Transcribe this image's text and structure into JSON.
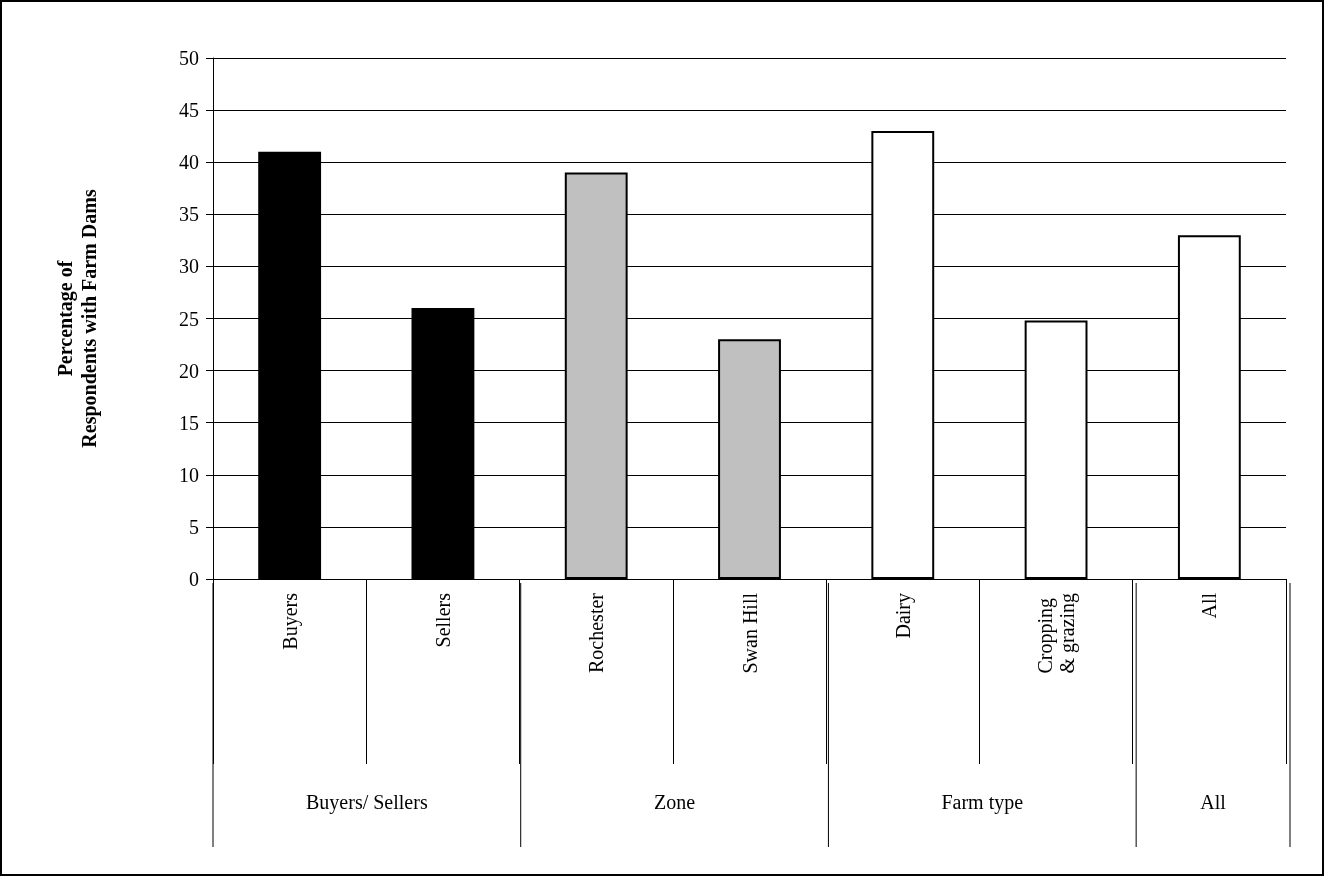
{
  "chart_data": {
    "type": "bar",
    "ylabel": "Percentage of Respondents with Farm Dams",
    "categories": [
      "Buyers",
      "Sellers",
      "Rochester",
      "Swan Hill",
      "Dairy",
      "Cropping & grazing",
      "All"
    ],
    "values": [
      41,
      26,
      39,
      23,
      43,
      24.8,
      33
    ],
    "colors": [
      "#000000",
      "#000000",
      "#c0c0c0",
      "#c0c0c0",
      "#ffffff",
      "#ffffff",
      "#ffffff"
    ],
    "annotations": [
      "Buyers/ Sellers",
      "Zone",
      "Farm type",
      "All"
    ],
    "ylim": [
      0,
      50
    ],
    "yticks": [
      0,
      5,
      10,
      15,
      20,
      25,
      30,
      35,
      40,
      45,
      50
    ],
    "grid": "y"
  }
}
